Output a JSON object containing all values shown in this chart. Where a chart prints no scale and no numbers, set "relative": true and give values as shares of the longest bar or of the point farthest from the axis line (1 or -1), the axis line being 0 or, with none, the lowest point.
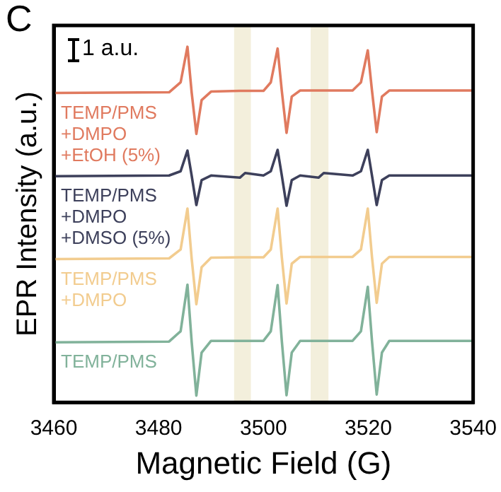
{
  "chart_data": {
    "type": "line",
    "xlabel": "Magnetic Field (G)",
    "ylabel": "EPR Intensity (a.u.)",
    "relative": true,
    "legend": false,
    "grid": false,
    "marker": "none",
    "line_style": "solid",
    "annotations": [
      "C",
      "1 a.u."
    ],
    "xlim": [
      3460,
      3540
    ],
    "xticks": [
      3460,
      3480,
      3500,
      3520,
      3540
    ],
    "x": [
      3460,
      3482,
      3484.2,
      3485.5,
      3486.3,
      3487.2,
      3488.2,
      3490,
      3495.5,
      3496.5,
      3500,
      3501.4,
      3502.7,
      3503.5,
      3504.4,
      3505.4,
      3507,
      3510.5,
      3511.5,
      3517,
      3518.6,
      3519.9,
      3520.7,
      3521.6,
      3522.6,
      3524,
      3540
    ],
    "bands": [
      {
        "axis": "x",
        "from": 3494.4,
        "to": 3497.6,
        "color": "#f3efdc"
      },
      {
        "axis": "x",
        "from": 3509,
        "to": 3512.4,
        "color": "#f3efdc"
      }
    ],
    "series": [
      {
        "name": "TEMP/PMS\n+DMPO\n+EtOH (5%)",
        "color": "#e07a5f",
        "values": [
          0.87,
          0.872,
          0.9,
          1.0,
          0.872,
          0.755,
          0.85,
          0.874,
          0.876,
          0.876,
          0.876,
          0.9,
          0.995,
          0.876,
          0.758,
          0.86,
          0.877,
          0.877,
          0.877,
          0.877,
          0.9,
          0.99,
          0.877,
          0.76,
          0.86,
          0.877,
          0.877
        ]
      },
      {
        "name": "TEMP/PMS\n+DMPO\n+DMSO (5%)",
        "color": "#3d405b",
        "values": [
          0.636,
          0.638,
          0.65,
          0.708,
          0.638,
          0.555,
          0.625,
          0.638,
          0.632,
          0.645,
          0.638,
          0.65,
          0.71,
          0.638,
          0.553,
          0.625,
          0.638,
          0.632,
          0.645,
          0.638,
          0.65,
          0.71,
          0.638,
          0.555,
          0.625,
          0.638,
          0.638
        ]
      },
      {
        "name": "TEMP/PMS\n+DMPO",
        "color": "#f2cc8f",
        "values": [
          0.403,
          0.405,
          0.43,
          0.545,
          0.405,
          0.276,
          0.38,
          0.407,
          0.408,
          0.408,
          0.408,
          0.43,
          0.545,
          0.408,
          0.278,
          0.39,
          0.409,
          0.409,
          0.409,
          0.409,
          0.43,
          0.545,
          0.409,
          0.28,
          0.39,
          0.409,
          0.409
        ]
      },
      {
        "name": "TEMP/PMS",
        "color": "#81b29a",
        "values": [
          0.169,
          0.171,
          0.2,
          0.331,
          0.171,
          0.019,
          0.14,
          0.173,
          0.173,
          0.173,
          0.173,
          0.2,
          0.33,
          0.173,
          0.02,
          0.14,
          0.173,
          0.173,
          0.173,
          0.173,
          0.2,
          0.325,
          0.173,
          0.022,
          0.14,
          0.173,
          0.173
        ]
      }
    ]
  }
}
